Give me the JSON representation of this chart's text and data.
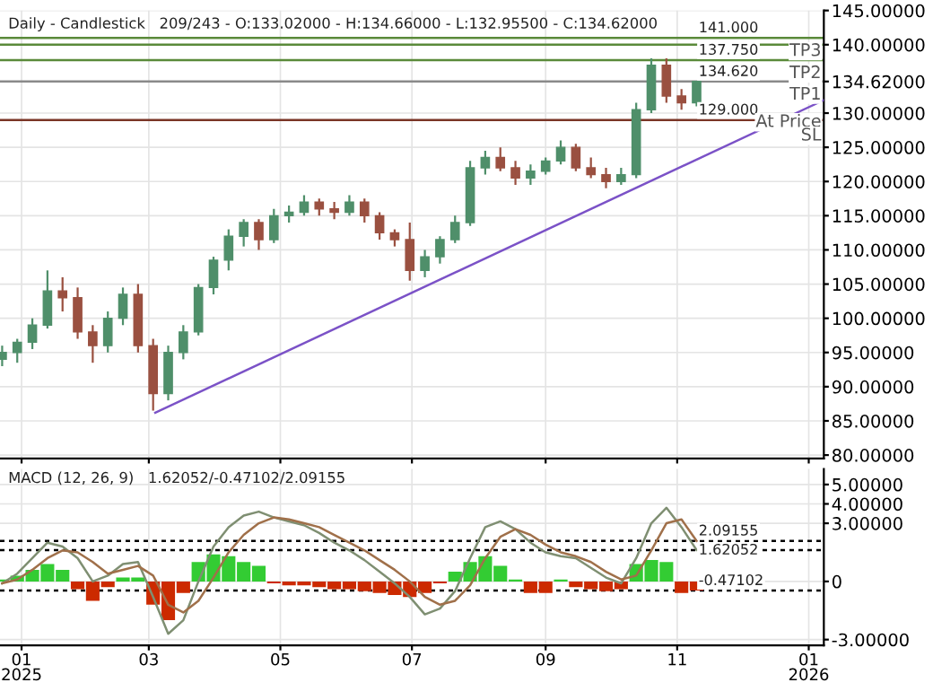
{
  "chart_data": [
    {
      "type": "candlestick",
      "title": "Daily - Candlestick   209/243 - O:133.02000 - H:134.66000 - L:132.95500 - C:134.62000",
      "x": [
        "2024-12-23",
        "2024-12-30",
        "2025-01-06",
        "2025-01-13",
        "2025-01-20",
        "2025-01-27",
        "2025-02-03",
        "2025-02-10",
        "2025-02-17",
        "2025-02-24",
        "2025-03-03",
        "2025-03-10",
        "2025-03-17",
        "2025-03-24",
        "2025-03-31",
        "2025-04-07",
        "2025-04-14",
        "2025-04-21",
        "2025-04-28",
        "2025-05-05",
        "2025-05-12",
        "2025-05-19",
        "2025-05-26",
        "2025-06-02",
        "2025-06-09",
        "2025-06-16",
        "2025-06-23",
        "2025-06-30",
        "2025-07-07",
        "2025-07-14",
        "2025-07-21",
        "2025-07-28",
        "2025-08-04",
        "2025-08-11",
        "2025-08-18",
        "2025-08-25",
        "2025-09-01",
        "2025-09-08",
        "2025-09-15",
        "2025-09-22",
        "2025-09-29",
        "2025-10-06",
        "2025-10-13",
        "2025-10-20",
        "2025-10-27",
        "2025-11-03",
        "2025-11-10"
      ],
      "ohlc": [
        [
          94,
          96,
          93,
          95
        ],
        [
          95,
          97,
          93.5,
          96.5
        ],
        [
          96.5,
          100,
          95.5,
          99
        ],
        [
          99,
          107,
          98.5,
          104
        ],
        [
          104,
          106,
          101,
          103
        ],
        [
          103,
          104.5,
          97,
          98
        ],
        [
          98,
          99,
          93.5,
          96
        ],
        [
          96,
          101,
          95,
          100
        ],
        [
          100,
          104.5,
          99,
          103.5
        ],
        [
          103.5,
          105,
          95,
          96
        ],
        [
          96,
          97,
          86.5,
          89
        ],
        [
          89,
          96,
          88,
          95
        ],
        [
          95,
          99,
          94,
          98
        ],
        [
          98,
          105,
          97.5,
          104.5
        ],
        [
          104.5,
          109,
          103.5,
          108.5
        ],
        [
          108.5,
          113,
          107,
          112
        ],
        [
          112,
          114.5,
          110.5,
          114
        ],
        [
          114,
          114.5,
          110,
          111.5
        ],
        [
          111.5,
          116,
          111,
          115
        ],
        [
          115,
          116.5,
          114,
          115.5
        ],
        [
          115.5,
          118,
          115,
          117
        ],
        [
          117,
          117.5,
          115,
          116
        ],
        [
          116,
          117,
          114.5,
          115.5
        ],
        [
          115.5,
          118,
          115,
          117
        ],
        [
          117,
          117.5,
          114,
          115
        ],
        [
          115,
          115.5,
          111.5,
          112.5
        ],
        [
          112.5,
          113,
          110.5,
          111.5
        ],
        [
          111.5,
          114,
          105.5,
          107
        ],
        [
          107,
          110,
          106,
          109
        ],
        [
          109,
          112,
          108,
          111.5
        ],
        [
          111.5,
          115,
          111,
          114
        ],
        [
          114,
          123,
          113.5,
          122
        ],
        [
          122,
          124.5,
          121,
          123.5
        ],
        [
          123.5,
          125,
          121.5,
          122
        ],
        [
          122,
          123,
          119.5,
          120.5
        ],
        [
          120.5,
          122.5,
          119.5,
          121.5
        ],
        [
          121.5,
          123.5,
          121,
          123
        ],
        [
          123,
          126,
          122.5,
          125
        ],
        [
          125,
          125.5,
          121.5,
          122
        ],
        [
          122,
          123.5,
          120.5,
          121
        ],
        [
          121,
          122,
          119,
          120
        ],
        [
          120,
          122,
          119.5,
          121
        ],
        [
          121,
          131.5,
          120.5,
          130.5
        ],
        [
          130.5,
          138,
          130,
          137
        ],
        [
          137,
          138,
          131.5,
          132.5
        ],
        [
          132.5,
          133.5,
          130.5,
          131.5
        ],
        [
          131.5,
          134.66,
          131,
          134.62
        ]
      ],
      "colors": [
        "#4f8f6a",
        "#4f8f6a",
        "#4f8f6a",
        "#4f8f6a",
        "#9a5040",
        "#9a5040",
        "#9a5040",
        "#4f8f6a",
        "#4f8f6a",
        "#9a5040",
        "#9a5040",
        "#4f8f6a",
        "#4f8f6a",
        "#4f8f6a",
        "#4f8f6a",
        "#4f8f6a",
        "#4f8f6a",
        "#9a5040",
        "#4f8f6a",
        "#4f8f6a",
        "#4f8f6a",
        "#9a5040",
        "#9a5040",
        "#4f8f6a",
        "#9a5040",
        "#9a5040",
        "#9a5040",
        "#9a5040",
        "#4f8f6a",
        "#4f8f6a",
        "#4f8f6a",
        "#4f8f6a",
        "#4f8f6a",
        "#9a5040",
        "#9a5040",
        "#4f8f6a",
        "#4f8f6a",
        "#4f8f6a",
        "#9a5040",
        "#9a5040",
        "#9a5040",
        "#4f8f6a",
        "#4f8f6a",
        "#4f8f6a",
        "#9a5040",
        "#9a5040",
        "#4f8f6a"
      ],
      "series": [
        {
          "type": "line",
          "x": [
            "2025-03-04",
            "2026-01-08"
          ],
          "values": [
            86.2,
            131.9
          ],
          "color": "#7b52c7"
        }
      ],
      "xlim": [
        "2024-12-22",
        "2026-01-08"
      ],
      "xticks": [
        {
          "value": "2025-01-01",
          "label": null
        },
        {
          "value": "2025-03-01",
          "label": null
        },
        {
          "value": "2025-05-01",
          "label": null
        },
        {
          "value": "2025-07-01",
          "label": null
        },
        {
          "value": "2025-09-01",
          "label": null
        },
        {
          "value": "2025-11-01",
          "label": null
        },
        {
          "value": "2026-01-01",
          "label": null
        }
      ],
      "ylim": [
        79.5,
        145
      ],
      "yticks": [
        {
          "value": 145,
          "label": "145.00000"
        },
        {
          "value": 140,
          "label": "140.00000"
        },
        {
          "value": 134.62,
          "label": "134.62000"
        },
        {
          "value": 130,
          "label": "130.00000"
        },
        {
          "value": 125,
          "label": "125.00000"
        },
        {
          "value": 120,
          "label": "120.00000"
        },
        {
          "value": 115,
          "label": "115.00000"
        },
        {
          "value": 110,
          "label": "110.00000"
        },
        {
          "value": 105,
          "label": "105.00000"
        },
        {
          "value": 100,
          "label": "100.00000"
        },
        {
          "value": 95,
          "label": "95.00000"
        },
        {
          "value": 90,
          "label": "90.00000"
        },
        {
          "value": 85,
          "label": "85.00000"
        },
        {
          "value": 80,
          "label": "80.00000"
        }
      ],
      "ref_lines": [
        {
          "axis": "y",
          "value": 141,
          "label": "141.000",
          "color": "#5a8a3a",
          "line_style": "solid"
        },
        {
          "axis": "y",
          "value": 140,
          "color": "#5a8a3a",
          "line_style": "solid"
        },
        {
          "axis": "y",
          "value": 137.75,
          "label": "137.750",
          "color": "#5a8a3a",
          "line_style": "solid"
        },
        {
          "axis": "y",
          "value": 134.62,
          "label": "134.620",
          "color": "#8a8a8a",
          "line_style": "solid"
        },
        {
          "axis": "y",
          "value": 129,
          "label": "129.000",
          "color": "#7a3526",
          "line_style": "solid"
        }
      ],
      "annotations": [
        {
          "text": "TP3",
          "x": "2026-01-08",
          "y": 141
        },
        {
          "text": "TP2",
          "x": "2026-01-08",
          "y": 137.75
        },
        {
          "text": "TP1",
          "x": "2026-01-08",
          "y": 134.62
        },
        {
          "text": "At Price",
          "x": "2026-01-08",
          "y": 134.62
        },
        {
          "text": "SL",
          "x": "2026-01-08",
          "y": 129
        }
      ],
      "grid": true,
      "tick_labels": "y",
      "legend": false
    },
    {
      "type": "bar",
      "title": "MACD (12, 26, 9)   1.62052/-0.47102/2.09155",
      "x": [
        "2024-12-23",
        "2024-12-30",
        "2025-01-06",
        "2025-01-13",
        "2025-01-20",
        "2025-01-27",
        "2025-02-03",
        "2025-02-10",
        "2025-02-17",
        "2025-02-24",
        "2025-03-03",
        "2025-03-10",
        "2025-03-17",
        "2025-03-24",
        "2025-03-31",
        "2025-04-07",
        "2025-04-14",
        "2025-04-21",
        "2025-04-28",
        "2025-05-05",
        "2025-05-12",
        "2025-05-19",
        "2025-05-26",
        "2025-06-02",
        "2025-06-09",
        "2025-06-16",
        "2025-06-23",
        "2025-06-30",
        "2025-07-07",
        "2025-07-14",
        "2025-07-21",
        "2025-07-28",
        "2025-08-04",
        "2025-08-11",
        "2025-08-18",
        "2025-08-25",
        "2025-09-01",
        "2025-09-08",
        "2025-09-15",
        "2025-09-22",
        "2025-09-29",
        "2025-10-06",
        "2025-10-13",
        "2025-10-20",
        "2025-10-27",
        "2025-11-03",
        "2025-11-10"
      ],
      "series": [
        {
          "type": "bar",
          "values": [
            0.1,
            0.3,
            0.6,
            0.9,
            0.6,
            -0.4,
            -1.0,
            -0.3,
            0.2,
            0.2,
            -1.2,
            -2.0,
            -0.6,
            1.0,
            1.4,
            1.3,
            1.0,
            0.8,
            -0.1,
            -0.2,
            -0.2,
            -0.3,
            -0.4,
            -0.4,
            -0.5,
            -0.6,
            -0.7,
            -0.8,
            -0.6,
            -0.1,
            0.5,
            1.0,
            1.3,
            0.8,
            0.1,
            -0.6,
            -0.6,
            0.1,
            -0.3,
            -0.4,
            -0.5,
            -0.4,
            0.9,
            1.1,
            1.0,
            -0.6,
            -0.47102
          ],
          "colors": [
            "#33cc33",
            "#33cc33",
            "#33cc33",
            "#33cc33",
            "#33cc33",
            "#cc2a00",
            "#cc2a00",
            "#cc2a00",
            "#33cc33",
            "#33cc33",
            "#cc2a00",
            "#cc2a00",
            "#cc2a00",
            "#33cc33",
            "#33cc33",
            "#33cc33",
            "#33cc33",
            "#33cc33",
            "#cc2a00",
            "#cc2a00",
            "#cc2a00",
            "#cc2a00",
            "#cc2a00",
            "#cc2a00",
            "#cc2a00",
            "#cc2a00",
            "#cc2a00",
            "#cc2a00",
            "#cc2a00",
            "#cc2a00",
            "#33cc33",
            "#33cc33",
            "#33cc33",
            "#33cc33",
            "#33cc33",
            "#cc2a00",
            "#cc2a00",
            "#33cc33",
            "#cc2a00",
            "#cc2a00",
            "#cc2a00",
            "#cc2a00",
            "#33cc33",
            "#33cc33",
            "#33cc33",
            "#cc2a00",
            "#cc2a00"
          ]
        },
        {
          "type": "line",
          "color": "#7f8f72",
          "values": [
            -0.1,
            0.4,
            1.2,
            2.0,
            1.8,
            1.2,
            0.0,
            0.3,
            0.9,
            1.0,
            -0.8,
            -2.7,
            -2.0,
            0.0,
            1.8,
            2.8,
            3.4,
            3.6,
            3.3,
            3.1,
            2.9,
            2.5,
            2.0,
            1.6,
            1.1,
            0.5,
            -0.1,
            -0.8,
            -1.7,
            -1.4,
            -0.5,
            1.2,
            2.8,
            3.1,
            2.7,
            2.0,
            1.5,
            1.3,
            1.2,
            0.7,
            0.2,
            -0.1,
            1.2,
            3.0,
            3.8,
            2.8,
            1.62052
          ]
        },
        {
          "type": "line",
          "color": "#a0704a",
          "values": [
            -0.1,
            0.1,
            0.6,
            1.2,
            1.6,
            1.5,
            1.0,
            0.4,
            0.6,
            0.8,
            0.3,
            -1.2,
            -1.6,
            -1.0,
            0.2,
            1.5,
            2.4,
            3.0,
            3.3,
            3.2,
            3.0,
            2.8,
            2.4,
            2.0,
            1.6,
            1.1,
            0.6,
            0.0,
            -0.8,
            -1.2,
            -1.0,
            -0.2,
            1.2,
            2.3,
            2.7,
            2.4,
            1.9,
            1.5,
            1.3,
            1.0,
            0.5,
            0.1,
            0.3,
            1.6,
            3.0,
            3.2,
            2.09155
          ]
        }
      ],
      "xlim": [
        "2024-12-22",
        "2026-01-08"
      ],
      "xticks": [
        {
          "value": "2025-01-01",
          "label": "01\n2025"
        },
        {
          "value": "2025-03-01",
          "label": "03"
        },
        {
          "value": "2025-05-01",
          "label": "05"
        },
        {
          "value": "2025-07-01",
          "label": "07"
        },
        {
          "value": "2025-09-01",
          "label": "09"
        },
        {
          "value": "2025-11-01",
          "label": "11"
        },
        {
          "value": "2026-01-01",
          "label": "01\n2026"
        }
      ],
      "ylim": [
        -3.3,
        5.8
      ],
      "yticks": [
        {
          "value": 5,
          "label": "5.00000"
        },
        {
          "value": 4,
          "label": "4.00000"
        },
        {
          "value": 3,
          "label": "3.00000"
        },
        0,
        {
          "value": -3,
          "label": "-3.00000"
        }
      ],
      "ref_lines": [
        {
          "axis": "y",
          "value": 2.09155,
          "label": "2.09155",
          "color": "#000000",
          "line_style": "dotted"
        },
        {
          "axis": "y",
          "value": 1.62052,
          "label": "1.62052",
          "color": "#000000",
          "line_style": "dotted"
        },
        {
          "axis": "y",
          "value": -0.47102,
          "label": "-0.47102",
          "color": "#000000",
          "line_style": "dotted"
        }
      ],
      "grid": true,
      "legend": false
    }
  ]
}
